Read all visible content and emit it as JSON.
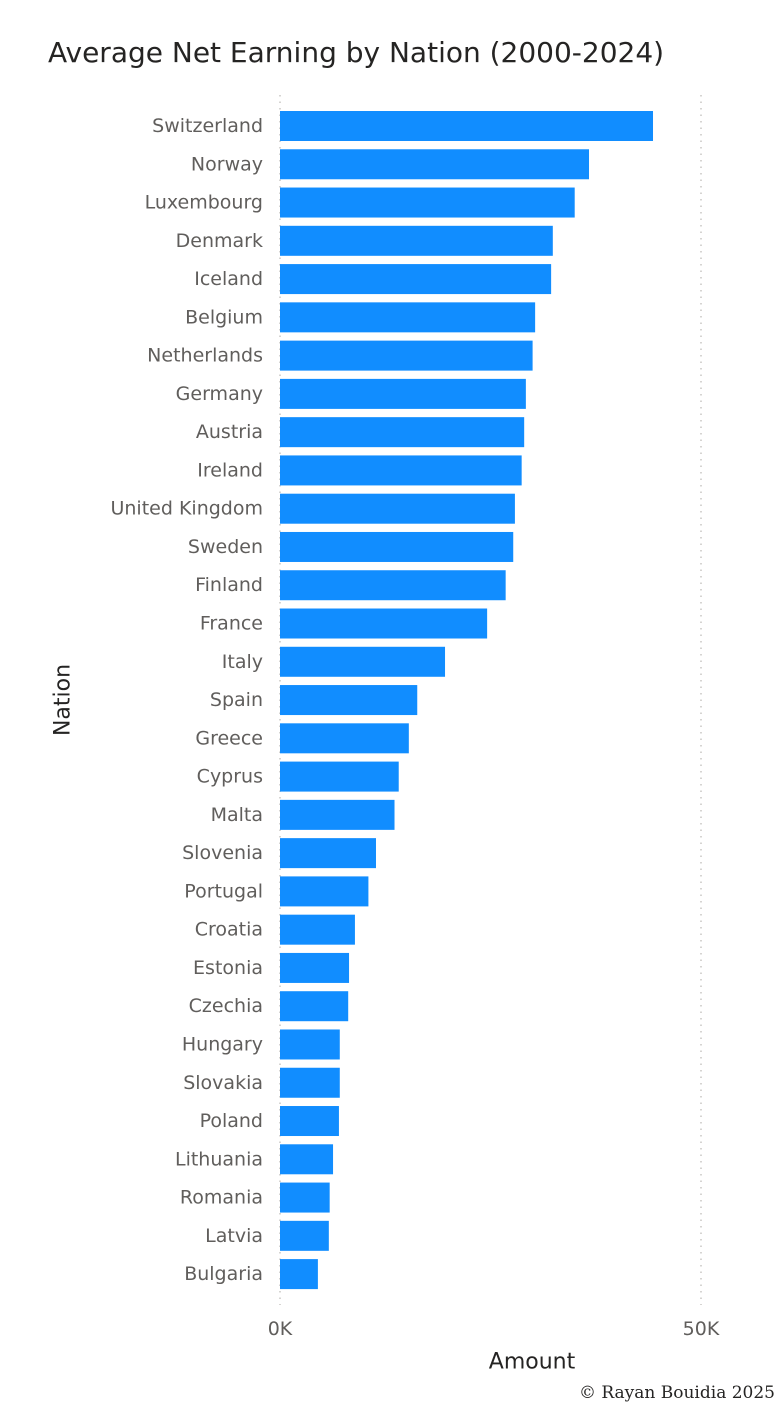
{
  "chart_data": {
    "type": "bar",
    "orientation": "horizontal",
    "title": "Average Net Earning by Nation (2000-2024)",
    "xlabel": "Amount",
    "ylabel": "Nation",
    "xlim": [
      0,
      50000
    ],
    "xticks": [
      {
        "value": 0,
        "label": "0K"
      },
      {
        "value": 50000,
        "label": "50K"
      }
    ],
    "grid": true,
    "bar_color": "#118DFF",
    "categories": [
      "Switzerland",
      "Norway",
      "Luxembourg",
      "Denmark",
      "Iceland",
      "Belgium",
      "Netherlands",
      "Germany",
      "Austria",
      "Ireland",
      "United Kingdom",
      "Sweden",
      "Finland",
      "France",
      "Italy",
      "Spain",
      "Greece",
      "Cyprus",
      "Malta",
      "Slovenia",
      "Portugal",
      "Croatia",
      "Estonia",
      "Czechia",
      "Hungary",
      "Slovakia",
      "Poland",
      "Lithuania",
      "Romania",
      "Latvia",
      "Bulgaria"
    ],
    "values": [
      44300,
      36700,
      35000,
      32400,
      32200,
      30300,
      30000,
      29200,
      29000,
      28700,
      27900,
      27700,
      26800,
      24600,
      19600,
      16300,
      15300,
      14100,
      13600,
      11400,
      10500,
      8900,
      8200,
      8100,
      7100,
      7100,
      7000,
      6300,
      5900,
      5800,
      4500
    ]
  },
  "footer": {
    "copyright": "© Rayan Bouidia 2025"
  }
}
